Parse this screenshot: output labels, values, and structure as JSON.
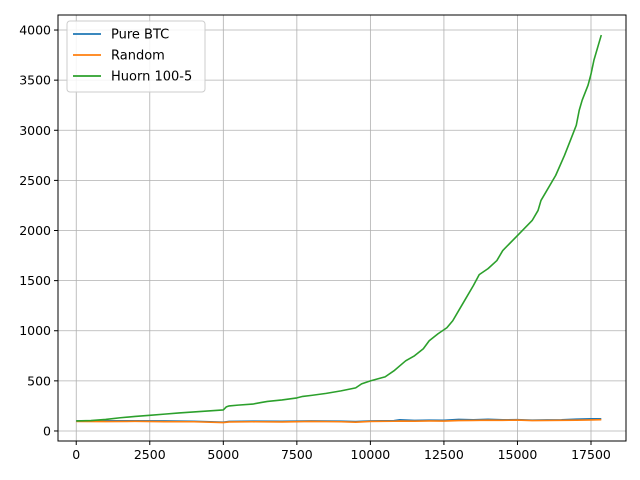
{
  "chart_data": {
    "type": "line",
    "title": "",
    "xlabel": "",
    "ylabel": "",
    "xlim": [
      -620,
      18690
    ],
    "ylim": [
      -100,
      4150
    ],
    "grid": true,
    "legend_position": "top-left",
    "xticks": [
      0,
      2500,
      5000,
      7500,
      10000,
      12500,
      15000,
      17500
    ],
    "yticks": [
      0,
      500,
      1000,
      1500,
      2000,
      2500,
      3000,
      3500,
      4000
    ],
    "series": [
      {
        "name": "Pure BTC",
        "color": "#1f77b4",
        "x": [
          0,
          1000,
          2000,
          3000,
          4000,
          5000,
          5200,
          6000,
          7000,
          8000,
          9000,
          9500,
          10000,
          10800,
          11000,
          11500,
          12000,
          12500,
          13000,
          13500,
          14000,
          14500,
          15000,
          15500,
          16000,
          16500,
          17000,
          17500,
          17850
        ],
        "y": [
          100,
          101,
          102,
          100,
          97,
          88,
          95,
          98,
          96,
          100,
          98,
          94,
          100,
          103,
          112,
          105,
          108,
          107,
          115,
          112,
          117,
          111,
          113,
          108,
          110,
          112,
          118,
          122,
          122
        ]
      },
      {
        "name": "Random",
        "color": "#ff7f0e",
        "x": [
          0,
          1000,
          2000,
          3000,
          4000,
          5000,
          5200,
          6000,
          7000,
          8000,
          9000,
          9500,
          10000,
          10800,
          11000,
          11500,
          12000,
          12500,
          13000,
          13500,
          14000,
          14500,
          15000,
          15500,
          16000,
          16500,
          17000,
          17500,
          17850
        ],
        "y": [
          95,
          94,
          96,
          93,
          92,
          84,
          90,
          92,
          90,
          95,
          92,
          88,
          95,
          97,
          99,
          98,
          100,
          99,
          104,
          105,
          108,
          106,
          109,
          104,
          105,
          106,
          108,
          110,
          113
        ]
      },
      {
        "name": "Huorn 100-5",
        "color": "#2ca02c",
        "x": [
          0,
          500,
          1000,
          1500,
          2000,
          2500,
          3000,
          3500,
          4000,
          4500,
          5000,
          5100,
          5200,
          5500,
          6000,
          6300,
          6500,
          7000,
          7500,
          7700,
          8000,
          8500,
          9000,
          9500,
          9700,
          9900,
          10000,
          10500,
          10800,
          11000,
          11200,
          11500,
          11800,
          12000,
          12300,
          12600,
          12800,
          13000,
          13200,
          13500,
          13700,
          14000,
          14300,
          14500,
          15000,
          15500,
          15700,
          15800,
          16000,
          16300,
          16600,
          16800,
          17000,
          17100,
          17200,
          17400,
          17500,
          17600,
          17750,
          17850
        ],
        "y": [
          100,
          104,
          115,
          132,
          145,
          156,
          168,
          180,
          190,
          200,
          210,
          240,
          250,
          258,
          268,
          285,
          295,
          310,
          330,
          345,
          355,
          375,
          400,
          430,
          470,
          490,
          500,
          540,
          600,
          650,
          700,
          750,
          820,
          900,
          970,
          1030,
          1100,
          1200,
          1300,
          1450,
          1560,
          1620,
          1700,
          1800,
          1950,
          2100,
          2200,
          2300,
          2400,
          2550,
          2750,
          2900,
          3050,
          3200,
          3300,
          3450,
          3560,
          3700,
          3850,
          3950
        ]
      }
    ]
  }
}
